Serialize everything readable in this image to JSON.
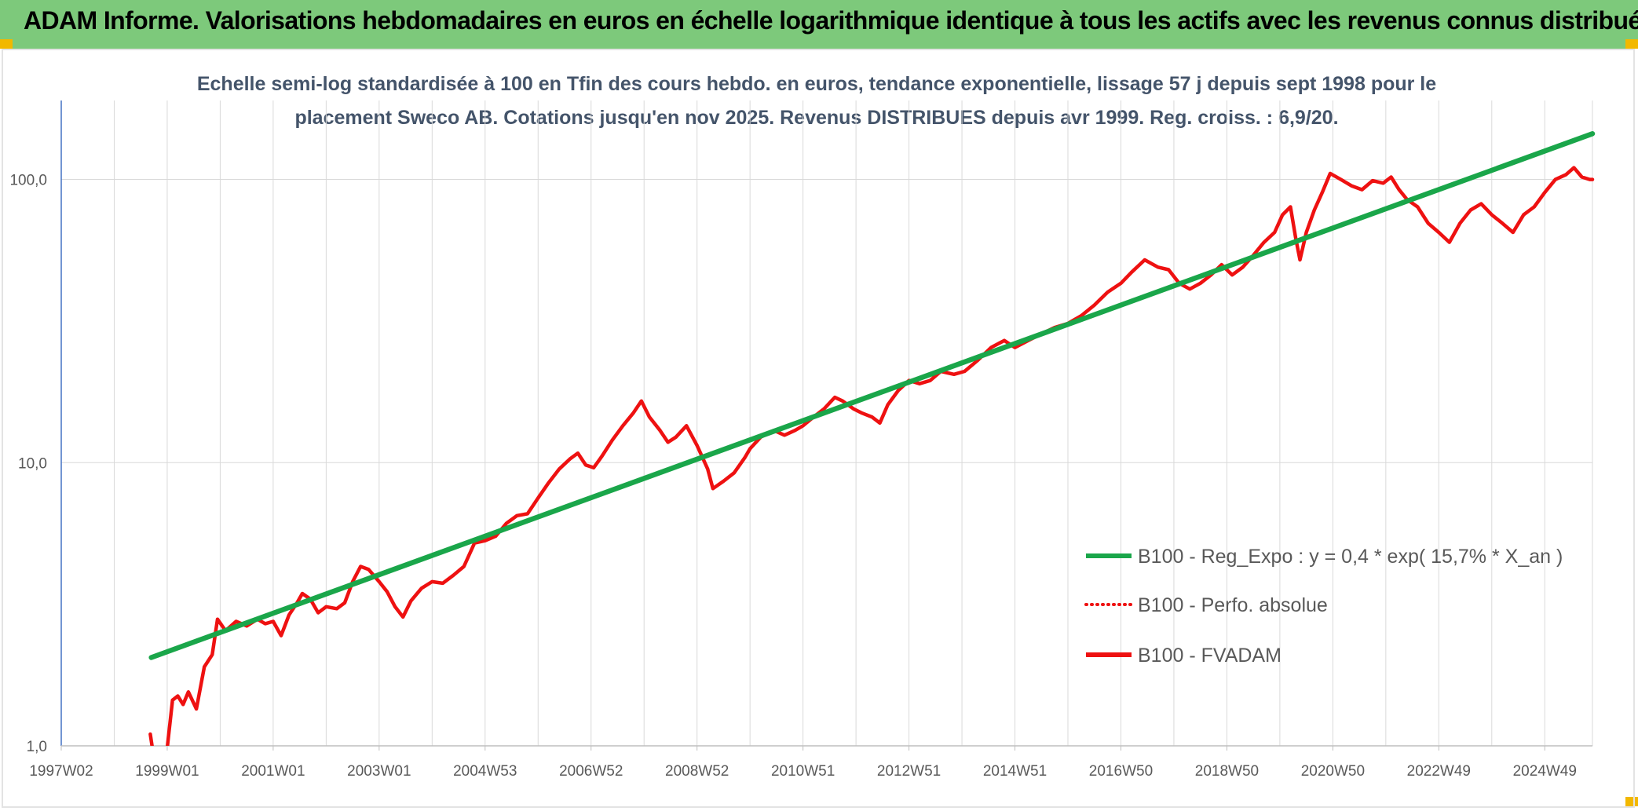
{
  "header": {
    "title": "ADAM Informe. Valorisations hebdomadaires en euros en échelle logarithmique identique à tous les actifs avec les revenus connus distribués"
  },
  "colors": {
    "header_bg": "#7dc97b",
    "trend": "#1aa64a",
    "fvadam": "#ee1111",
    "perfo": "#ee1111",
    "grid": "#d9d9d9",
    "axis": "#4472c4"
  },
  "chart_data": {
    "type": "line",
    "title_lines": [
      "Echelle semi-log standardisée à 100 en Tfin des cours hebdo. en euros, tendance exponentielle, lissage 57 j depuis sept 1998 pour le",
      "placement Sweco AB. Cotations jusqu'en nov 2025. Revenus DISTRIBUES depuis avr 1999. Reg. croiss. : 6,9/20."
    ],
    "y_scale": "log",
    "ylim": [
      1,
      190
    ],
    "y_ticks": [
      {
        "value": 1,
        "label": "1,0"
      },
      {
        "value": 10,
        "label": "10,0"
      },
      {
        "value": 100,
        "label": "100,0"
      }
    ],
    "x_range": [
      1997.0,
      2025.9
    ],
    "x_ticks": [
      {
        "value": 1997.0,
        "label": "1997W02"
      },
      {
        "value": 1999.0,
        "label": "1999W01"
      },
      {
        "value": 2001.0,
        "label": "2001W01"
      },
      {
        "value": 2003.0,
        "label": "2003W01"
      },
      {
        "value": 2005.0,
        "label": "2004W53"
      },
      {
        "value": 2007.0,
        "label": "2006W52"
      },
      {
        "value": 2009.0,
        "label": "2008W52"
      },
      {
        "value": 2011.0,
        "label": "2010W51"
      },
      {
        "value": 2013.0,
        "label": "2012W51"
      },
      {
        "value": 2015.0,
        "label": "2014W51"
      },
      {
        "value": 2017.0,
        "label": "2016W50"
      },
      {
        "value": 2019.0,
        "label": "2018W50"
      },
      {
        "value": 2021.0,
        "label": "2020W50"
      },
      {
        "value": 2023.0,
        "label": "2022W49"
      },
      {
        "value": 2025.0,
        "label": "2024W49"
      }
    ],
    "grid": true,
    "legend_position": "right",
    "series": [
      {
        "name": "B100 - Reg_Expo : y = 0,4 * exp( 15,7% *  X_an )",
        "style": "solid-thick",
        "points": [
          [
            1998.7,
            2.05
          ],
          [
            2025.9,
            145
          ]
        ]
      },
      {
        "name": "B100 - Perfo. absolue",
        "style": "dotted",
        "points": []
      },
      {
        "name": "B100 - FVADAM",
        "style": "solid",
        "points": [
          [
            1998.68,
            1.1
          ],
          [
            1998.72,
            0.98
          ],
          [
            1998.95,
            0.95
          ],
          [
            1999.0,
            0.98
          ],
          [
            1999.1,
            1.45
          ],
          [
            1999.2,
            1.5
          ],
          [
            1999.3,
            1.4
          ],
          [
            1999.4,
            1.55
          ],
          [
            1999.55,
            1.35
          ],
          [
            1999.7,
            1.9
          ],
          [
            1999.85,
            2.1
          ],
          [
            1999.95,
            2.8
          ],
          [
            2000.1,
            2.55
          ],
          [
            2000.3,
            2.75
          ],
          [
            2000.5,
            2.65
          ],
          [
            2000.7,
            2.8
          ],
          [
            2000.85,
            2.7
          ],
          [
            2001.0,
            2.75
          ],
          [
            2001.15,
            2.45
          ],
          [
            2001.3,
            2.9
          ],
          [
            2001.45,
            3.2
          ],
          [
            2001.55,
            3.45
          ],
          [
            2001.7,
            3.3
          ],
          [
            2001.85,
            2.95
          ],
          [
            2002.0,
            3.1
          ],
          [
            2002.2,
            3.05
          ],
          [
            2002.35,
            3.2
          ],
          [
            2002.5,
            3.8
          ],
          [
            2002.65,
            4.3
          ],
          [
            2002.8,
            4.2
          ],
          [
            2003.0,
            3.8
          ],
          [
            2003.15,
            3.5
          ],
          [
            2003.3,
            3.1
          ],
          [
            2003.45,
            2.85
          ],
          [
            2003.6,
            3.25
          ],
          [
            2003.8,
            3.6
          ],
          [
            2004.0,
            3.8
          ],
          [
            2004.2,
            3.75
          ],
          [
            2004.4,
            4.0
          ],
          [
            2004.6,
            4.3
          ],
          [
            2004.8,
            5.2
          ],
          [
            2005.0,
            5.3
          ],
          [
            2005.2,
            5.5
          ],
          [
            2005.4,
            6.1
          ],
          [
            2005.6,
            6.5
          ],
          [
            2005.8,
            6.6
          ],
          [
            2006.0,
            7.5
          ],
          [
            2006.2,
            8.5
          ],
          [
            2006.4,
            9.5
          ],
          [
            2006.6,
            10.3
          ],
          [
            2006.75,
            10.8
          ],
          [
            2006.9,
            9.8
          ],
          [
            2007.05,
            9.6
          ],
          [
            2007.2,
            10.5
          ],
          [
            2007.4,
            12.0
          ],
          [
            2007.6,
            13.5
          ],
          [
            2007.8,
            15.0
          ],
          [
            2007.95,
            16.5
          ],
          [
            2008.1,
            14.5
          ],
          [
            2008.3,
            13.0
          ],
          [
            2008.45,
            11.8
          ],
          [
            2008.6,
            12.3
          ],
          [
            2008.8,
            13.5
          ],
          [
            2009.0,
            11.5
          ],
          [
            2009.2,
            9.5
          ],
          [
            2009.3,
            8.1
          ],
          [
            2009.5,
            8.6
          ],
          [
            2009.7,
            9.2
          ],
          [
            2009.9,
            10.4
          ],
          [
            2010.0,
            11.2
          ],
          [
            2010.2,
            12.3
          ],
          [
            2010.45,
            13.0
          ],
          [
            2010.65,
            12.5
          ],
          [
            2010.85,
            13.0
          ],
          [
            2011.0,
            13.5
          ],
          [
            2011.2,
            14.5
          ],
          [
            2011.4,
            15.5
          ],
          [
            2011.6,
            17.0
          ],
          [
            2011.75,
            16.5
          ],
          [
            2011.95,
            15.5
          ],
          [
            2012.1,
            15.0
          ],
          [
            2012.3,
            14.5
          ],
          [
            2012.45,
            13.8
          ],
          [
            2012.6,
            16.0
          ],
          [
            2012.8,
            18.0
          ],
          [
            2013.0,
            19.5
          ],
          [
            2013.2,
            19.0
          ],
          [
            2013.4,
            19.5
          ],
          [
            2013.6,
            21.0
          ],
          [
            2013.85,
            20.5
          ],
          [
            2014.05,
            21.0
          ],
          [
            2014.3,
            23.0
          ],
          [
            2014.55,
            25.5
          ],
          [
            2014.8,
            27.0
          ],
          [
            2015.0,
            25.5
          ],
          [
            2015.25,
            27.0
          ],
          [
            2015.5,
            28.5
          ],
          [
            2015.75,
            30.0
          ],
          [
            2016.0,
            31.0
          ],
          [
            2016.25,
            33.0
          ],
          [
            2016.5,
            36.0
          ],
          [
            2016.75,
            40.0
          ],
          [
            2017.0,
            43.0
          ],
          [
            2017.2,
            47.0
          ],
          [
            2017.45,
            52.0
          ],
          [
            2017.7,
            49.0
          ],
          [
            2017.9,
            48.0
          ],
          [
            2018.1,
            43.0
          ],
          [
            2018.3,
            41.0
          ],
          [
            2018.5,
            43.0
          ],
          [
            2018.7,
            46.0
          ],
          [
            2018.9,
            50.0
          ],
          [
            2019.1,
            46.0
          ],
          [
            2019.3,
            49.0
          ],
          [
            2019.5,
            54.0
          ],
          [
            2019.7,
            60.0
          ],
          [
            2019.9,
            65.0
          ],
          [
            2020.05,
            75.0
          ],
          [
            2020.2,
            80.0
          ],
          [
            2020.3,
            62.0
          ],
          [
            2020.38,
            52.0
          ],
          [
            2020.5,
            65.0
          ],
          [
            2020.65,
            78.0
          ],
          [
            2020.8,
            90.0
          ],
          [
            2020.95,
            105.0
          ],
          [
            2021.15,
            100.0
          ],
          [
            2021.35,
            95.0
          ],
          [
            2021.55,
            92.0
          ],
          [
            2021.75,
            99.0
          ],
          [
            2021.95,
            97.0
          ],
          [
            2022.1,
            102.0
          ],
          [
            2022.25,
            92.0
          ],
          [
            2022.4,
            85.0
          ],
          [
            2022.6,
            80.0
          ],
          [
            2022.8,
            70.0
          ],
          [
            2023.0,
            65.0
          ],
          [
            2023.2,
            60.0
          ],
          [
            2023.4,
            70.0
          ],
          [
            2023.6,
            78.0
          ],
          [
            2023.8,
            82.0
          ],
          [
            2024.0,
            75.0
          ],
          [
            2024.2,
            70.0
          ],
          [
            2024.4,
            65.0
          ],
          [
            2024.6,
            75.0
          ],
          [
            2024.8,
            80.0
          ],
          [
            2025.0,
            90.0
          ],
          [
            2025.2,
            100.0
          ],
          [
            2025.4,
            104.0
          ],
          [
            2025.55,
            110.0
          ],
          [
            2025.7,
            102.0
          ],
          [
            2025.85,
            100.0
          ],
          [
            2025.9,
            100.0
          ]
        ]
      }
    ]
  }
}
